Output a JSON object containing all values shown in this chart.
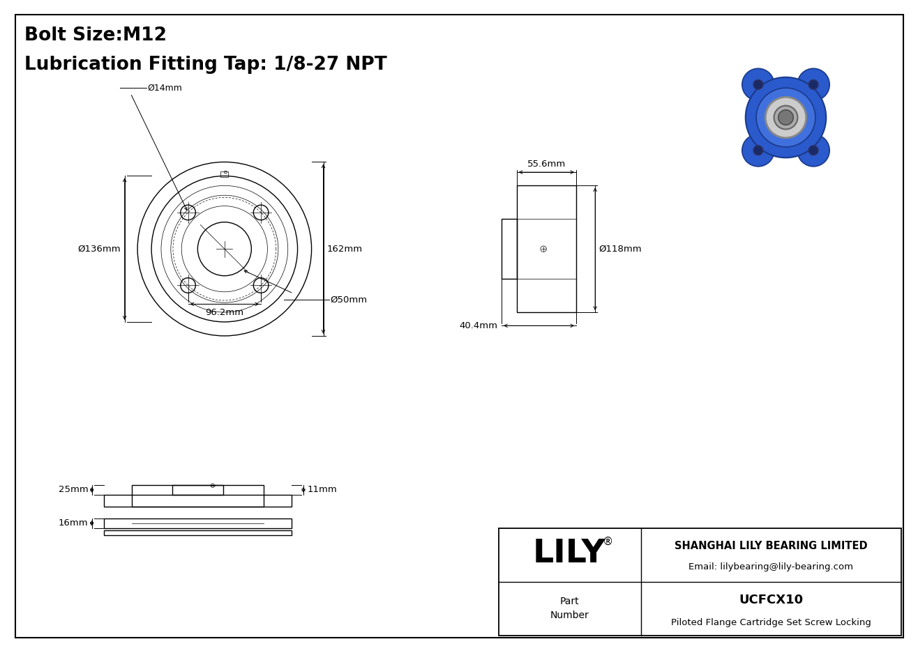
{
  "title_line1": "Bolt Size:M12",
  "title_line2": "Lubrication Fitting Tap: 1/8-27 NPT",
  "bg_color": "#ffffff",
  "line_color": "#000000",
  "company_name": "SHANGHAI LILY BEARING LIMITED",
  "company_email": "Email: lilybearing@lily-bearing.com",
  "part_number": "UCFCX10",
  "part_desc": "Piloted Flange Cartridge Set Screw Locking",
  "dims_d14": "Ø14mm",
  "dims_d136": "Ø136mm",
  "dims_d162": "162mm",
  "dims_d96": "96.2mm",
  "dims_d50": "Ø50mm",
  "dims_d55": "55.6mm",
  "dims_d118": "Ø118mm",
  "dims_d40": "40.4mm",
  "dims_d25": "25mm",
  "dims_d11": "11mm",
  "dims_d16": "16mm"
}
